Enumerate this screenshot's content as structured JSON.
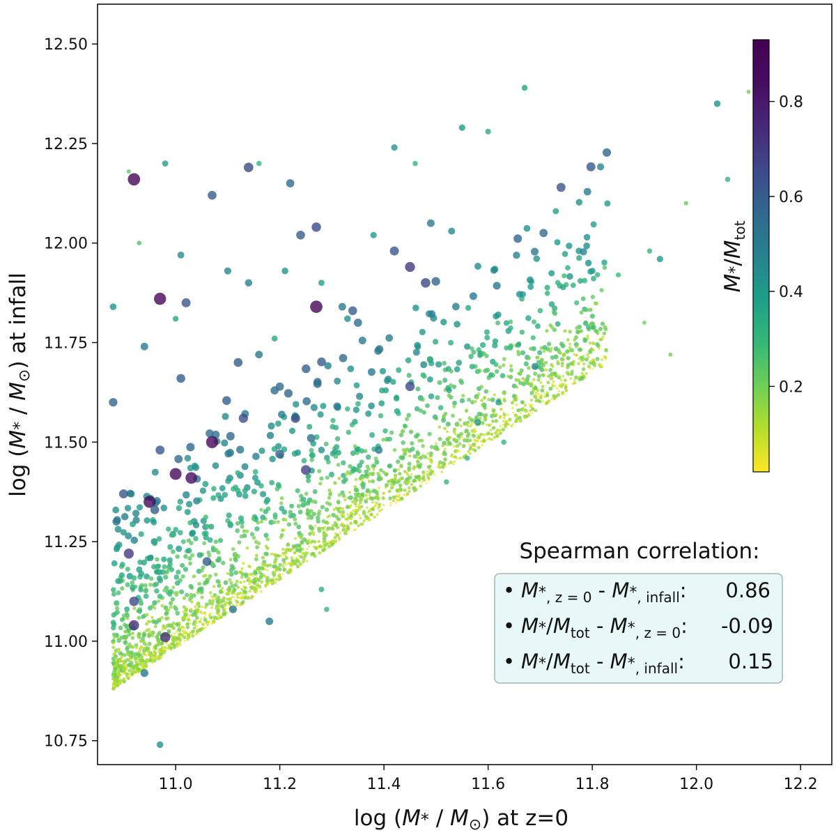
{
  "chart_data": {
    "type": "scatter",
    "title": "",
    "xlabel": "log (M* / M⊙) at z=0",
    "ylabel": "log (M* / M⊙) at infall",
    "xlabel_parts": {
      "prefix": "log (",
      "m": "M",
      "star": "*",
      "slash": " / ",
      "msun": "M",
      "sun": "⊙",
      "suffix": ") at z=0"
    },
    "ylabel_parts": {
      "prefix": "log (",
      "m": "M",
      "star": "*",
      "slash": " / ",
      "msun": "M",
      "sun": "⊙",
      "suffix": ") at infall"
    },
    "xlim": [
      10.85,
      12.26
    ],
    "ylim": [
      10.69,
      12.6
    ],
    "xticks": [
      11.0,
      11.2,
      11.4,
      11.6,
      11.8,
      12.0,
      12.2
    ],
    "xtick_labels": [
      "11.0",
      "11.2",
      "11.4",
      "11.6",
      "11.8",
      "12.0",
      "12.2"
    ],
    "yticks": [
      10.75,
      11.0,
      11.25,
      11.5,
      11.75,
      12.0,
      12.25,
      12.5
    ],
    "ytick_labels": [
      "10.75",
      "11.00",
      "11.25",
      "11.50",
      "11.75",
      "12.00",
      "12.25",
      "12.50"
    ],
    "colorbar": {
      "label": "M*/Mtot",
      "label_parts": {
        "m": "M",
        "star": "*",
        "slash": "/",
        "m2": "M",
        "sub": "tot"
      },
      "range": [
        0.02,
        0.93
      ],
      "ticks": [
        0.2,
        0.4,
        0.6,
        0.8
      ],
      "tick_labels": [
        "0.2",
        "0.4",
        "0.6",
        "0.8"
      ],
      "colormap": "viridis_r"
    },
    "annotation": {
      "title": "Spearman correlation:",
      "items": [
        {
          "label": "M*,z=0 - M*,infall:",
          "value": "0.86"
        },
        {
          "label": "M*/Mtot - M*,z=0:",
          "value": "-0.09"
        },
        {
          "label": "M*/Mtot - M*,infall:",
          "value": "0.15"
        }
      ]
    },
    "points": [
      [
        10.88,
        11.84,
        0.42
      ],
      [
        10.91,
        12.18,
        0.22
      ],
      [
        10.92,
        12.16,
        0.9
      ],
      [
        10.98,
        12.2,
        0.38
      ],
      [
        10.93,
        12.0,
        0.25
      ],
      [
        10.97,
        11.86,
        0.88
      ],
      [
        11.02,
        11.85,
        0.62
      ],
      [
        10.94,
        11.74,
        0.5
      ],
      [
        11.0,
        11.81,
        0.35
      ],
      [
        11.01,
        11.97,
        0.44
      ],
      [
        11.07,
        12.12,
        0.6
      ],
      [
        11.1,
        11.93,
        0.46
      ],
      [
        11.14,
        12.19,
        0.66
      ],
      [
        11.16,
        12.2,
        0.3
      ],
      [
        11.22,
        12.15,
        0.55
      ],
      [
        11.24,
        12.02,
        0.6
      ],
      [
        11.27,
        12.04,
        0.65
      ],
      [
        11.21,
        11.93,
        0.42
      ],
      [
        11.28,
        11.9,
        0.38
      ],
      [
        11.14,
        11.9,
        0.48
      ],
      [
        11.19,
        11.76,
        0.36
      ],
      [
        11.27,
        11.84,
        0.9
      ],
      [
        11.32,
        11.84,
        0.5
      ],
      [
        11.34,
        11.83,
        0.6
      ],
      [
        11.35,
        11.8,
        0.55
      ],
      [
        11.33,
        11.81,
        0.42
      ],
      [
        11.38,
        12.02,
        0.4
      ],
      [
        11.42,
        11.98,
        0.62
      ],
      [
        11.45,
        11.94,
        0.7
      ],
      [
        11.48,
        11.9,
        0.66
      ],
      [
        11.49,
        12.05,
        0.5
      ],
      [
        11.53,
        12.03,
        0.45
      ],
      [
        11.55,
        12.29,
        0.4
      ],
      [
        11.6,
        12.28,
        0.34
      ],
      [
        11.67,
        12.39,
        0.36
      ],
      [
        11.73,
        12.08,
        0.38
      ],
      [
        11.74,
        12.14,
        0.62
      ],
      [
        11.42,
        12.24,
        0.4
      ],
      [
        11.46,
        12.2,
        0.3
      ],
      [
        12.04,
        12.35,
        0.42
      ],
      [
        12.06,
        12.16,
        0.3
      ],
      [
        11.93,
        11.96,
        0.4
      ],
      [
        11.91,
        11.98,
        0.3
      ],
      [
        11.69,
        11.69,
        0.45
      ],
      [
        11.56,
        11.74,
        0.4
      ],
      [
        10.88,
        11.6,
        0.58
      ],
      [
        10.9,
        11.37,
        0.62
      ],
      [
        10.95,
        11.35,
        0.88
      ],
      [
        10.96,
        11.33,
        0.6
      ],
      [
        11.0,
        11.42,
        0.86
      ],
      [
        11.03,
        11.41,
        0.84
      ],
      [
        11.07,
        11.5,
        0.88
      ],
      [
        10.97,
        11.48,
        0.62
      ],
      [
        11.01,
        11.66,
        0.6
      ],
      [
        11.12,
        11.7,
        0.6
      ],
      [
        11.13,
        11.56,
        0.64
      ],
      [
        11.16,
        11.72,
        0.5
      ],
      [
        11.23,
        11.56,
        0.64
      ],
      [
        11.2,
        11.47,
        0.6
      ],
      [
        11.25,
        11.43,
        0.68
      ],
      [
        11.26,
        11.51,
        0.55
      ],
      [
        11.31,
        11.59,
        0.5
      ],
      [
        11.45,
        11.64,
        0.65
      ],
      [
        11.39,
        11.48,
        0.5
      ],
      [
        10.91,
        11.22,
        0.7
      ],
      [
        10.92,
        11.1,
        0.66
      ],
      [
        10.92,
        11.04,
        0.72
      ],
      [
        10.98,
        11.01,
        0.72
      ],
      [
        11.28,
        11.48,
        0.42
      ],
      [
        11.19,
        11.63,
        0.55
      ],
      [
        11.18,
        11.05,
        0.5
      ],
      [
        11.06,
        11.2,
        0.6
      ],
      [
        11.11,
        11.08,
        0.52
      ],
      [
        10.94,
        10.92,
        0.52
      ],
      [
        10.97,
        10.74,
        0.42
      ],
      [
        11.28,
        11.13,
        0.32
      ],
      [
        11.29,
        11.08,
        0.3
      ],
      [
        11.7,
        11.83,
        0.3
      ],
      [
        11.77,
        11.85,
        0.28
      ],
      [
        11.85,
        11.92,
        0.28
      ],
      [
        11.98,
        12.1,
        0.22
      ],
      [
        12.1,
        12.38,
        0.2
      ],
      [
        11.95,
        11.72,
        0.2
      ],
      [
        11.9,
        11.8,
        0.2
      ],
      [
        11.78,
        11.66,
        0.24
      ],
      [
        11.62,
        11.6,
        0.38
      ],
      [
        11.63,
        11.5,
        0.3
      ],
      [
        11.58,
        11.55,
        0.42
      ],
      [
        11.56,
        11.46,
        0.3
      ],
      [
        11.52,
        11.4,
        0.3
      ]
    ],
    "cloud": {
      "x_min": 10.88,
      "slope": 0.86,
      "base_y": 10.9,
      "width_scale": 0.42,
      "seed": 12345,
      "count": 2600
    }
  }
}
